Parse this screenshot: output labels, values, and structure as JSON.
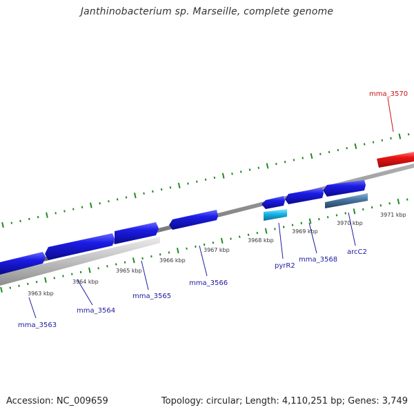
{
  "title": "Janthinobacterium sp. Marseille, complete genome",
  "accession": "Accession: NC_009659",
  "topology": "Topology: circular; Length: 4,110,251 bp; Genes: 3,749",
  "colors": {
    "forward_gene": "#1c1ce6",
    "reverse_gene": "#ea1414",
    "gene_label_blue": "#1a1aa0",
    "gene_label_red": "#cc1111",
    "trna_cyan": "#18b6ec",
    "operon_steel": "#4a79a6",
    "operon_grey": "#c2c2c2",
    "backbone": "#7a7a7a",
    "ticks_green": "#1f8a1f"
  },
  "scale_ticks": [
    {
      "label": "3963 kbp"
    },
    {
      "label": "3964 kbp"
    },
    {
      "label": "3965 kbp"
    },
    {
      "label": "3966 kbp"
    },
    {
      "label": "3967 kbp"
    },
    {
      "label": "3968 kbp"
    },
    {
      "label": "3969 kbp"
    },
    {
      "label": "3970 kbp"
    },
    {
      "label": "3971 kbp"
    }
  ],
  "genes": [
    {
      "label": "mma_3563"
    },
    {
      "label": "mma_3564"
    },
    {
      "label": "mma_3565"
    },
    {
      "label": "mma_3566"
    },
    {
      "label": "pyrR2"
    },
    {
      "label": "mma_3568"
    },
    {
      "label": "arcC2"
    },
    {
      "label": "mma_3570"
    }
  ]
}
